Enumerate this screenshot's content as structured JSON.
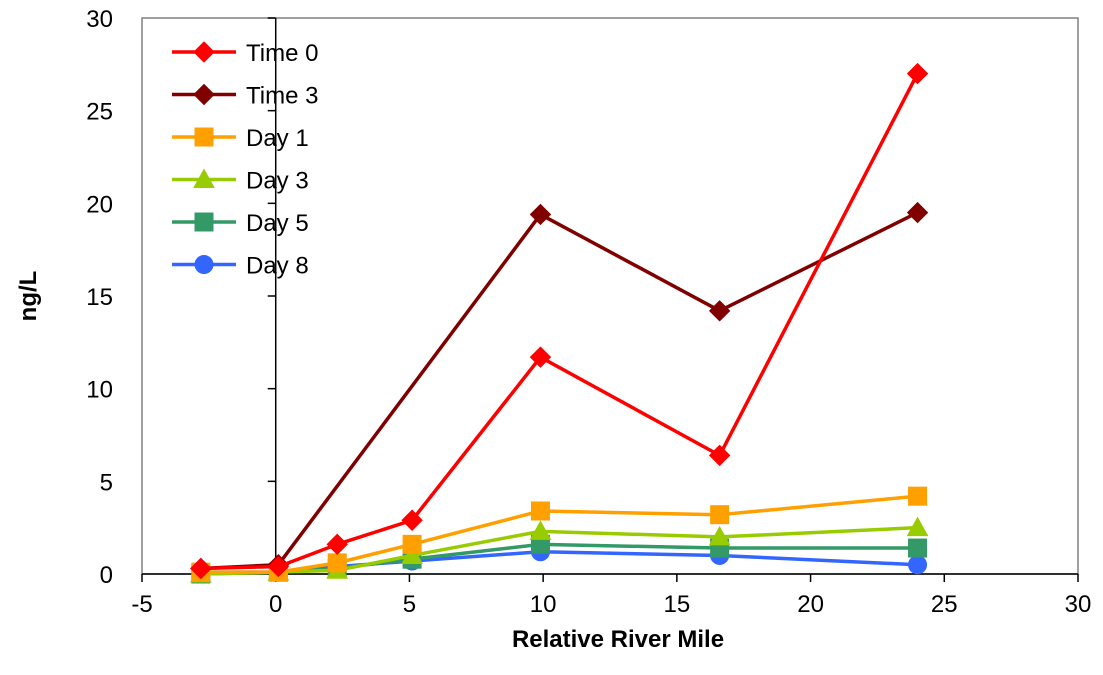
{
  "chart_data": {
    "type": "line",
    "title": "",
    "xlabel": "Relative River Mile",
    "ylabel": "ng/L",
    "xlim": [
      -5,
      30
    ],
    "ylim": [
      0,
      30
    ],
    "x_ticks": [
      -5,
      0,
      5,
      10,
      15,
      20,
      25,
      30
    ],
    "y_ticks": [
      0,
      5,
      10,
      15,
      20,
      25,
      30
    ],
    "x_tick_labels": [
      "-5",
      "0",
      "5",
      "10",
      "15",
      "20",
      "25",
      "30"
    ],
    "y_tick_labels": [
      "0",
      "5",
      "10",
      "15",
      "20",
      "25",
      "30"
    ],
    "grid": false,
    "legend_position": "top-left",
    "x": [
      -2.8,
      0.1,
      2.3,
      5.1,
      9.9,
      16.6,
      24
    ],
    "series": [
      {
        "name": "Time 0",
        "color": "#ff0000",
        "marker": "diamond",
        "values": [
          0.3,
          0.4,
          1.6,
          2.9,
          11.7,
          6.4,
          27
        ]
      },
      {
        "name": "Time 3",
        "color": "#800000",
        "marker": "diamond",
        "values": [
          0.3,
          0.5,
          null,
          null,
          19.4,
          14.2,
          19.5
        ]
      },
      {
        "name": "Day 1",
        "color": "#ffa000",
        "marker": "square",
        "values": [
          0.1,
          0.1,
          0.6,
          1.6,
          3.4,
          3.2,
          4.2
        ]
      },
      {
        "name": "Day 3",
        "color": "#99cc00",
        "marker": "triangle",
        "values": [
          0.0,
          0.1,
          0.2,
          1.0,
          2.3,
          2.0,
          2.5
        ]
      },
      {
        "name": "Day 5",
        "color": "#339966",
        "marker": "square",
        "values": [
          0.0,
          0.1,
          0.3,
          0.8,
          1.6,
          1.4,
          1.4
        ]
      },
      {
        "name": "Day 8",
        "color": "#3366ff",
        "marker": "circle",
        "values": [
          0.1,
          0.1,
          0.4,
          0.7,
          1.2,
          1.0,
          0.5
        ]
      }
    ]
  }
}
